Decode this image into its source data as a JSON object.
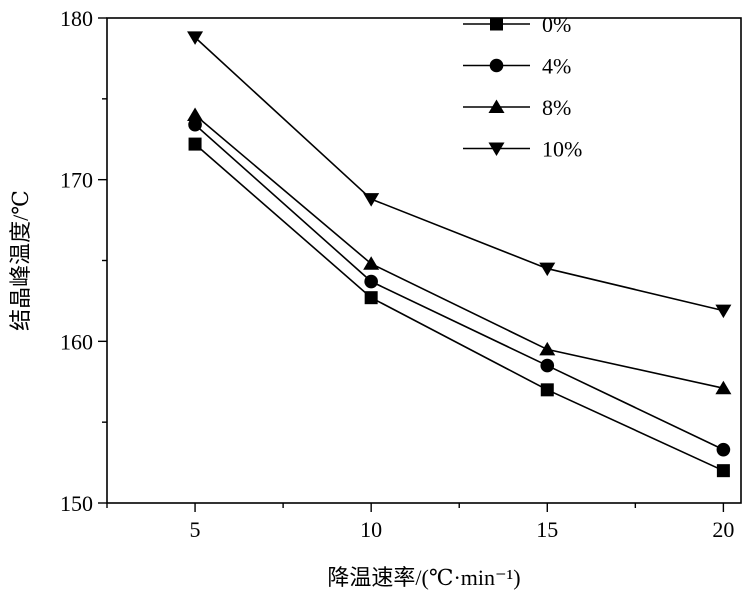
{
  "chart_data": {
    "type": "line",
    "title": "",
    "xlabel": "降温速率/(℃·min⁻¹)",
    "ylabel": "结晶峰温度/℃",
    "x": [
      5,
      10,
      15,
      20
    ],
    "xlim": [
      2.5,
      20.5
    ],
    "ylim": [
      150,
      180
    ],
    "xticks": [
      5,
      10,
      15,
      20
    ],
    "yticks": [
      150,
      160,
      170,
      180
    ],
    "grid": false,
    "legend_position": "top-right",
    "series": [
      {
        "name": "0%",
        "marker": "square",
        "values": [
          172.2,
          162.7,
          157.0,
          152.0
        ]
      },
      {
        "name": "4%",
        "marker": "circle",
        "values": [
          173.4,
          163.7,
          158.5,
          153.3
        ]
      },
      {
        "name": "8%",
        "marker": "triangle-up",
        "values": [
          174.0,
          164.8,
          159.5,
          157.1
        ]
      },
      {
        "name": "10%",
        "marker": "triangle-down",
        "values": [
          178.8,
          168.8,
          164.5,
          161.9
        ]
      }
    ]
  }
}
